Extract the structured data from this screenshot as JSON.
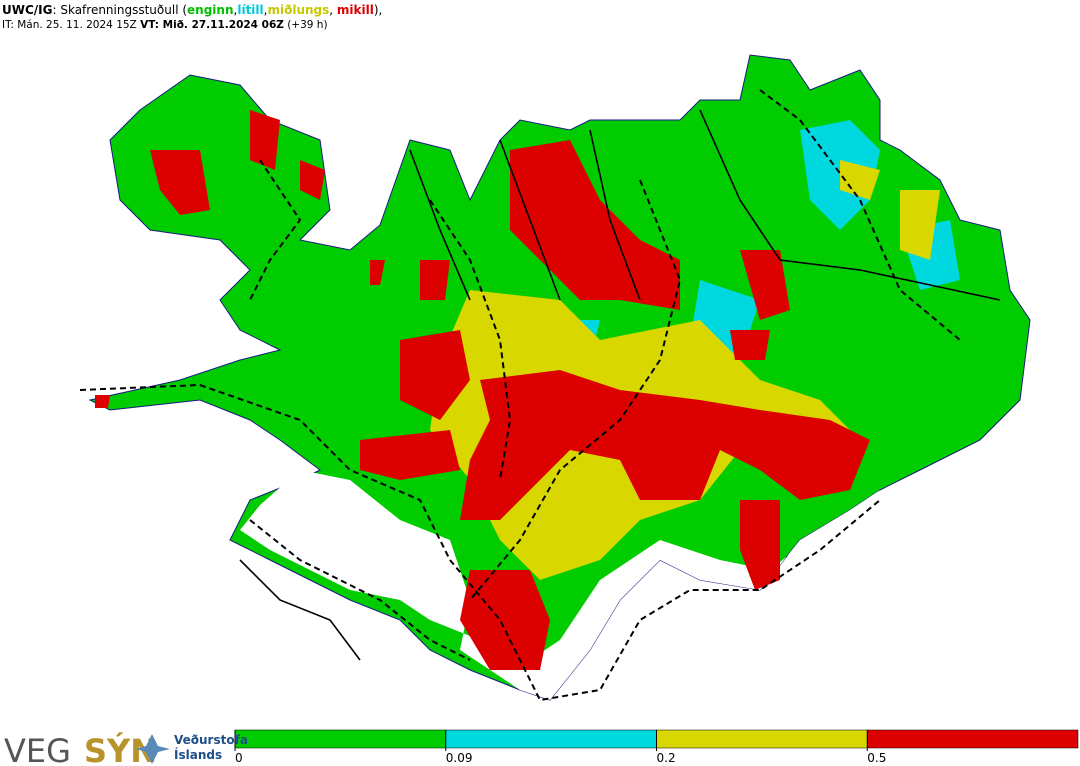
{
  "header": {
    "title_segments": [
      {
        "text": "UWC/IG",
        "bold": true,
        "color": "#000000"
      },
      {
        "text": ": Skafrenningsstuðull (",
        "bold": false,
        "color": "#000000"
      },
      {
        "text": "enginn",
        "bold": true,
        "color": "#00c000"
      },
      {
        "text": ",",
        "bold": false,
        "color": "#000000"
      },
      {
        "text": "lítill",
        "bold": true,
        "color": "#00c8d8"
      },
      {
        "text": ",",
        "bold": false,
        "color": "#000000"
      },
      {
        "text": "miðlungs",
        "bold": true,
        "color": "#c8c800"
      },
      {
        "text": ", ",
        "bold": false,
        "color": "#000000"
      },
      {
        "text": "mikill",
        "bold": true,
        "color": "#dc0000"
      },
      {
        "text": "),",
        "bold": false,
        "color": "#000000"
      }
    ],
    "time_segments": [
      {
        "text": "IT: Mán. 25. 11. 2024 15Z ",
        "bold": false
      },
      {
        "text": "VT: Mið. 27.11.2024 06Z",
        "bold": true
      },
      {
        "text": " (+39 h)",
        "bold": false
      }
    ]
  },
  "legend": {
    "ticks": [
      0,
      0.09,
      0.2,
      0.5
    ],
    "colors": [
      "#00cc00",
      "#00d8e0",
      "#d8d800",
      "#dc0000"
    ]
  },
  "logos": {
    "veg": "VEG",
    "syn": "SÝN",
    "vedurstofa": "Veðurstofa",
    "islands": "Íslands"
  }
}
